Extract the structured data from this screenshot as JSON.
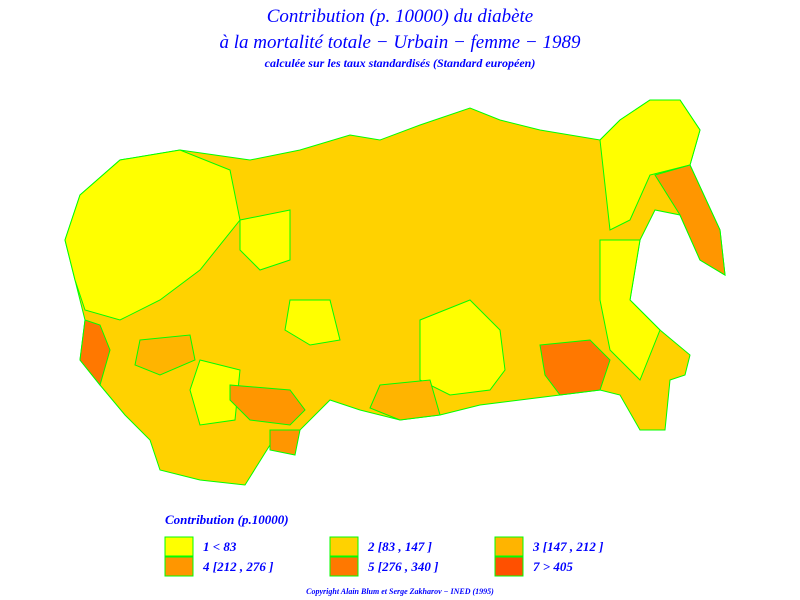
{
  "header": {
    "title_line1": "Contribution (p. 10000) du diabète",
    "title_line2": "à la mortalité totale − Urbain − femme − 1989",
    "subtitle": "calculée sur les taux standardisés (Standard européen)"
  },
  "legend": {
    "title": "Contribution (p.10000)",
    "items": [
      {
        "label": "1  <  83",
        "color": "#ffff00"
      },
      {
        "label": "2  [83 ,  147 ]",
        "color": "#ffd200"
      },
      {
        "label": "3  [147 ,  212  ]",
        "color": "#ffb400"
      },
      {
        "label": "4  [212 ,  276  ]",
        "color": "#ff9600"
      },
      {
        "label": "5  [276 ,  340  ]",
        "color": "#ff7800"
      },
      {
        "label": "7  >  405",
        "color": "#ff5000"
      }
    ]
  },
  "footer": {
    "copyright": "Copyright Alain Blum et Serge Zakharov − INED (1995)"
  }
}
